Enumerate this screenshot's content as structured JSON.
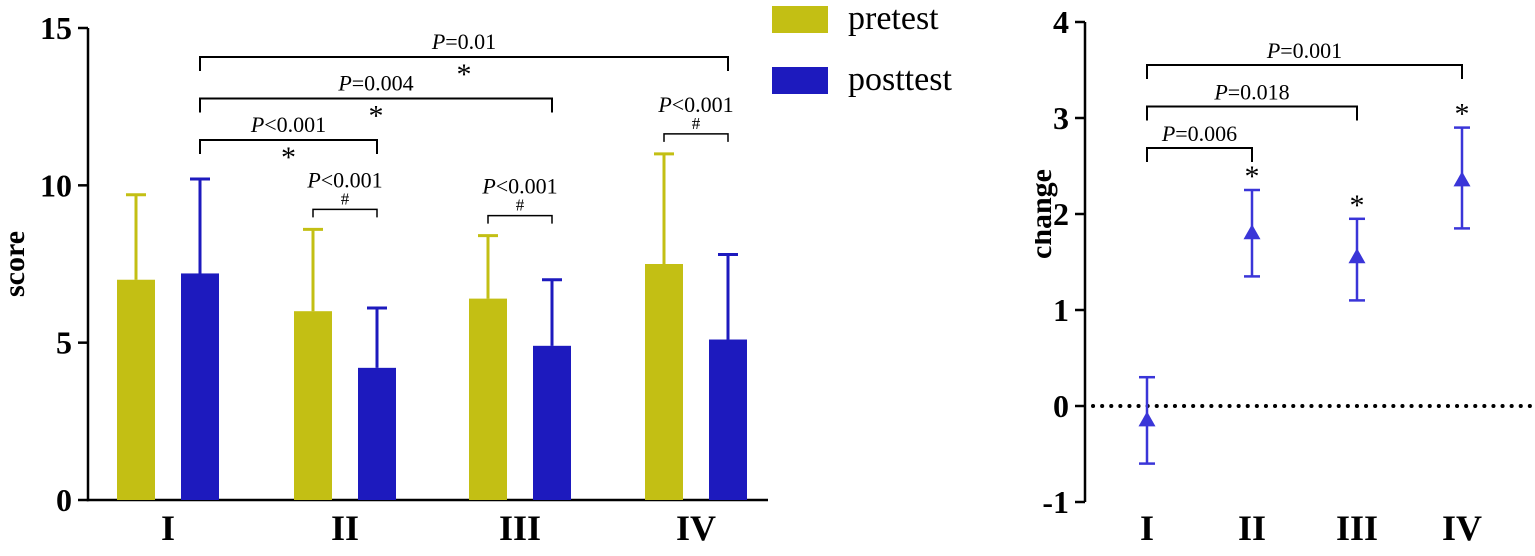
{
  "legend": {
    "items": [
      {
        "label": "pretest",
        "color": "#c3bf14"
      },
      {
        "label": "posttest",
        "color": "#1d1abe"
      }
    ]
  },
  "chart_data": [
    {
      "type": "bar",
      "title": "",
      "ylabel": "score",
      "ylim": [
        0,
        15
      ],
      "yticks": [
        0,
        5,
        10,
        15
      ],
      "categories": [
        "I",
        "II",
        "III",
        "IV"
      ],
      "grid": false,
      "legend_position": "outside-top-right",
      "error_bars": "upper-sd",
      "series": [
        {
          "name": "pretest",
          "color": "#c3bf14",
          "values": [
            7.0,
            6.0,
            6.4,
            7.5
          ],
          "sd_upper": [
            9.7,
            8.6,
            8.4,
            11.0
          ]
        },
        {
          "name": "posttest",
          "color": "#1d1abe",
          "values": [
            7.2,
            4.2,
            4.9,
            5.1
          ],
          "sd_upper": [
            10.2,
            6.1,
            7.0,
            7.8
          ]
        }
      ],
      "within_group_brackets": [
        {
          "group": 1,
          "label": "P<0.001",
          "symbol": "#"
        },
        {
          "group": 2,
          "label": "P<0.001",
          "symbol": "#"
        },
        {
          "group": 3,
          "label": "P<0.001",
          "symbol": "#"
        }
      ],
      "between_group_brackets": [
        {
          "from_group": 0,
          "to_group": 1,
          "label": "P<0.001",
          "symbol": "*"
        },
        {
          "from_group": 0,
          "to_group": 2,
          "label": "P=0.004",
          "symbol": "*"
        },
        {
          "from_group": 0,
          "to_group": 3,
          "label": "P=0.01",
          "symbol": "*"
        }
      ]
    },
    {
      "type": "scatter",
      "title": "",
      "ylabel": "change",
      "ylim": [
        -1,
        4
      ],
      "yticks": [
        -1,
        0,
        1,
        2,
        3,
        4
      ],
      "categories": [
        "I",
        "II",
        "III",
        "IV"
      ],
      "marker": "triangle-up",
      "color": "#3a35d8",
      "values": [
        -0.15,
        1.8,
        1.55,
        2.35
      ],
      "ci_low": [
        -0.6,
        1.35,
        1.1,
        1.85
      ],
      "ci_high": [
        0.3,
        2.25,
        1.95,
        2.9
      ],
      "point_symbols": [
        "",
        "*",
        "*",
        "*"
      ],
      "zero_line": {
        "y": 0,
        "style": "dotted"
      },
      "brackets": [
        {
          "from": 0,
          "to": 1,
          "label": "P=0.006"
        },
        {
          "from": 0,
          "to": 2,
          "label": "P=0.018"
        },
        {
          "from": 0,
          "to": 3,
          "label": "P=0.001"
        }
      ]
    }
  ]
}
